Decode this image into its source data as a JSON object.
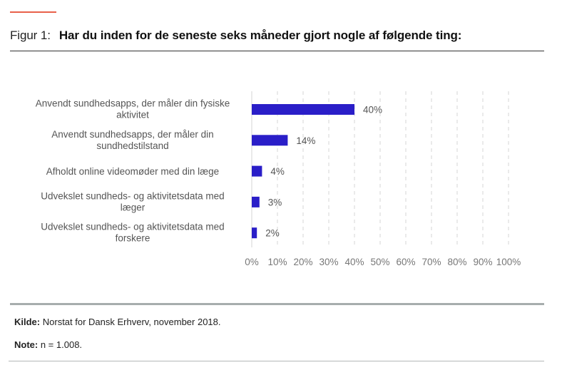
{
  "header": {
    "figure_number": "Figur 1:",
    "question": "Har du inden for de seneste seks måneder gjort nogle af følgende ting:"
  },
  "chart_data": {
    "type": "bar",
    "orientation": "horizontal",
    "title": "Har du inden for de seneste seks måneder gjort nogle af følgende ting:",
    "categories": [
      [
        "Anvendt sundhedsapps, der måler din fysiske",
        "aktivitet"
      ],
      [
        "Anvendt sundhedsapps, der måler din",
        "sundhedstilstand"
      ],
      [
        "Afholdt online videomøder med din læge"
      ],
      [
        "Udvekslet sundheds- og aktivitetsdata med",
        "læger"
      ],
      [
        "Udvekslet sundheds- og aktivitetsdata med",
        "forskere"
      ]
    ],
    "values": [
      40,
      14,
      4,
      3,
      2
    ],
    "value_labels": [
      "40%",
      "14%",
      "4%",
      "3%",
      "2%"
    ],
    "xlabel": "",
    "ylabel": "",
    "xlim": [
      0,
      100
    ],
    "x_ticks": [
      0,
      10,
      20,
      30,
      40,
      50,
      60,
      70,
      80,
      90,
      100
    ],
    "x_tick_labels": [
      "0%",
      "10%",
      "20%",
      "30%",
      "40%",
      "50%",
      "60%",
      "70%",
      "80%",
      "90%",
      "100%"
    ],
    "grid": "vertical-dashed",
    "legend": "none",
    "bar_color": "#2a1ec8"
  },
  "footer": {
    "source_label": "Kilde:",
    "source_text": "Norstat for Dansk Erhverv, november 2018.",
    "note_label": "Note:",
    "note_text": "n = 1.008."
  },
  "colors": {
    "accent": "#e8604a",
    "bar": "#2a1ec8"
  }
}
